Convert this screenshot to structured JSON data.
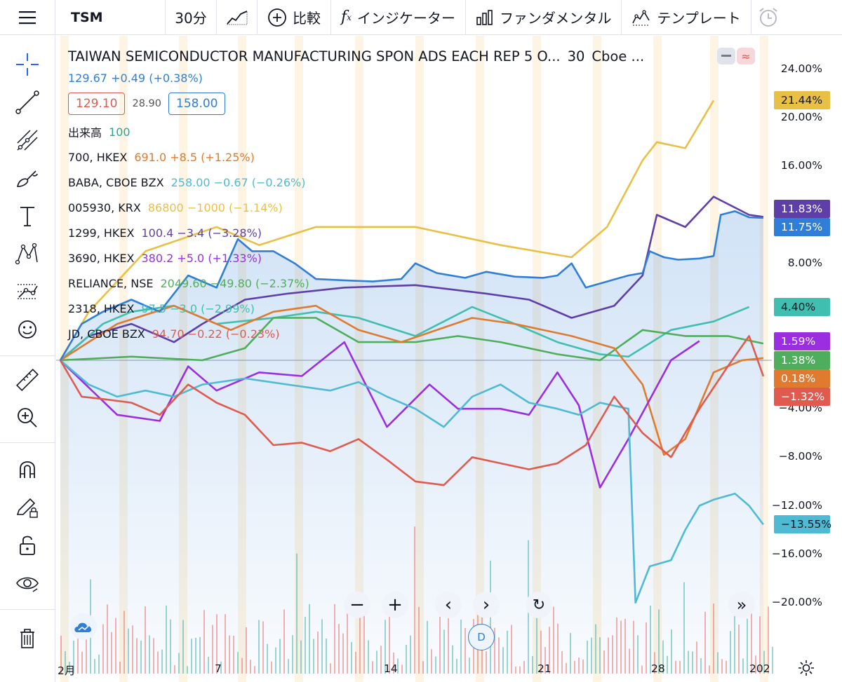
{
  "toolbar": {
    "symbol": "TSM",
    "interval": "30分",
    "compare_label": "比較",
    "indicators_label": "インジケーター",
    "fundamentals_label": "ファンダメンタル",
    "templates_label": "テンプレート"
  },
  "legend": {
    "title": "TAIWAN SEMICONDUCTOR MANUFACTURING SPON ADS EACH REP 5 O...",
    "interval": "30",
    "exchange": "Cboe ...",
    "price": "129.67",
    "change": "+0.49",
    "change_pct": "(+0.38%)",
    "bid": "129.10",
    "spread": "28.90",
    "ask": "158.00",
    "volume_label": "出来高",
    "volume_value": "100",
    "rows": [
      {
        "name": "700, HKEX",
        "value": "691.0 +8.5 (+1.25%)",
        "color": "#e07a2e"
      },
      {
        "name": "BABA, CBOE BZX",
        "value": "258.00 −0.67 (−0.26%)",
        "color": "#4ebad3"
      },
      {
        "name": "005930, KRX",
        "value": "86800 −1000 (−1.14%)",
        "color": "#e9c046"
      },
      {
        "name": "1299, HKEX",
        "value": "100.4 −3.4 (−3.28%)",
        "color": "#5e3fa8"
      },
      {
        "name": "3690, HKEX",
        "value": "380.2 +5.0 (+1.33%)",
        "color": "#9b2ee0"
      },
      {
        "name": "RELIANCE, NSE",
        "value": "2049.60 −49.80 (−2.37%)",
        "color": "#4fae5c"
      },
      {
        "name": "2318, HKEX",
        "value": "97.5 −3.0 (−2.99%)",
        "color": "#3fbfb0"
      },
      {
        "name": "JD, CBOE BZX",
        "value": "94.70 −0.22 (−0.23%)",
        "color": "#e05a50"
      }
    ]
  },
  "chart_data": {
    "type": "line",
    "title": "TAIWAN SEMICONDUCTOR MANUFACTURING SPON ADS EACH REP 5 O...",
    "yaxis_ticks": [
      "24.00%",
      "20.00%",
      "16.00%",
      "8.00%",
      "4.00%",
      "−4.00%",
      "−8.00%",
      "−12.00%",
      "−16.00%",
      "−20.00%"
    ],
    "ylim": [
      -22,
      25
    ],
    "xaxis_ticks": [
      "2月",
      "7",
      "14",
      "21",
      "28",
      "202"
    ],
    "series": [
      {
        "name": "TSM",
        "color": "#2f7ed8",
        "last": "11.75%",
        "points": [
          [
            0,
            0
          ],
          [
            0.03,
            3
          ],
          [
            0.06,
            4
          ],
          [
            0.1,
            5
          ],
          [
            0.14,
            4
          ],
          [
            0.18,
            7
          ],
          [
            0.22,
            6
          ],
          [
            0.25,
            10
          ],
          [
            0.27,
            9
          ],
          [
            0.3,
            9
          ],
          [
            0.33,
            8
          ],
          [
            0.36,
            6.7
          ],
          [
            0.4,
            6.6
          ],
          [
            0.44,
            6.5
          ],
          [
            0.48,
            6.7
          ],
          [
            0.5,
            8
          ],
          [
            0.53,
            7.2
          ],
          [
            0.57,
            6.8
          ],
          [
            0.6,
            7.3
          ],
          [
            0.64,
            6.9
          ],
          [
            0.68,
            6.8
          ],
          [
            0.7,
            7
          ],
          [
            0.72,
            8
          ],
          [
            0.74,
            6
          ],
          [
            0.77,
            6.5
          ],
          [
            0.8,
            7
          ],
          [
            0.82,
            7.2
          ],
          [
            0.83,
            9
          ],
          [
            0.85,
            8.5
          ],
          [
            0.87,
            8.3
          ],
          [
            0.9,
            8.4
          ],
          [
            0.92,
            8.6
          ],
          [
            0.93,
            12
          ],
          [
            0.95,
            12.3
          ],
          [
            0.97,
            11.8
          ],
          [
            0.99,
            11.75
          ]
        ]
      },
      {
        "name": "005930, KRX",
        "color": "#e9c046",
        "last": "21.44%",
        "points": [
          [
            0,
            0
          ],
          [
            0.04,
            4
          ],
          [
            0.12,
            9
          ],
          [
            0.22,
            11
          ],
          [
            0.28,
            9.5
          ],
          [
            0.36,
            11
          ],
          [
            0.5,
            11
          ],
          [
            0.62,
            9.5
          ],
          [
            0.72,
            8.5
          ],
          [
            0.77,
            11
          ],
          [
            0.82,
            16.5
          ],
          [
            0.84,
            18
          ],
          [
            0.88,
            17.5
          ],
          [
            0.92,
            21.44
          ]
        ]
      },
      {
        "name": "1299, HKEX",
        "color": "#5e3fa8",
        "last": "11.83%",
        "points": [
          [
            0,
            0
          ],
          [
            0.04,
            2
          ],
          [
            0.1,
            3
          ],
          [
            0.16,
            1.5
          ],
          [
            0.2,
            3
          ],
          [
            0.26,
            5
          ],
          [
            0.32,
            5.5
          ],
          [
            0.4,
            6
          ],
          [
            0.5,
            6.2
          ],
          [
            0.6,
            5.5
          ],
          [
            0.66,
            5
          ],
          [
            0.72,
            3.5
          ],
          [
            0.78,
            4.5
          ],
          [
            0.82,
            7
          ],
          [
            0.84,
            12
          ],
          [
            0.88,
            11
          ],
          [
            0.92,
            13.5
          ],
          [
            0.97,
            12
          ],
          [
            0.99,
            11.83
          ]
        ]
      },
      {
        "name": "2318, HKEX",
        "color": "#3fbfb0",
        "last": "4.40%",
        "points": [
          [
            0,
            0
          ],
          [
            0.06,
            3
          ],
          [
            0.1,
            4
          ],
          [
            0.16,
            4.5
          ],
          [
            0.22,
            3
          ],
          [
            0.3,
            3.5
          ],
          [
            0.36,
            4
          ],
          [
            0.42,
            3.5
          ],
          [
            0.5,
            2
          ],
          [
            0.58,
            4.4
          ],
          [
            0.64,
            3
          ],
          [
            0.7,
            1.5
          ],
          [
            0.76,
            0.5
          ],
          [
            0.8,
            0.3
          ],
          [
            0.86,
            2.5
          ],
          [
            0.92,
            3.2
          ],
          [
            0.97,
            4.4
          ]
        ]
      },
      {
        "name": "RELIANCE, NSE",
        "color": "#4fae5c",
        "last": "1.38%",
        "points": [
          [
            0,
            0
          ],
          [
            0.1,
            0.3
          ],
          [
            0.2,
            0
          ],
          [
            0.26,
            1
          ],
          [
            0.3,
            3.5
          ],
          [
            0.36,
            3.5
          ],
          [
            0.42,
            1.5
          ],
          [
            0.5,
            1.5
          ],
          [
            0.56,
            2
          ],
          [
            0.62,
            1.5
          ],
          [
            0.7,
            0.5
          ],
          [
            0.76,
            0
          ],
          [
            0.82,
            2.5
          ],
          [
            0.88,
            2
          ],
          [
            0.94,
            2
          ],
          [
            0.99,
            1.38
          ]
        ]
      },
      {
        "name": "700, HKEX",
        "color": "#e07a2e",
        "last": "0.18%",
        "points": [
          [
            0,
            0
          ],
          [
            0.08,
            3
          ],
          [
            0.16,
            4.5
          ],
          [
            0.24,
            2.5
          ],
          [
            0.3,
            4
          ],
          [
            0.36,
            4.5
          ],
          [
            0.42,
            2.5
          ],
          [
            0.48,
            1.5
          ],
          [
            0.58,
            3.5
          ],
          [
            0.64,
            3
          ],
          [
            0.72,
            2
          ],
          [
            0.78,
            1
          ],
          [
            0.82,
            -2
          ],
          [
            0.85,
            -7.8
          ],
          [
            0.88,
            -6.5
          ],
          [
            0.92,
            -1
          ],
          [
            0.96,
            0
          ],
          [
            0.99,
            0.18
          ]
        ]
      },
      {
        "name": "3690, HKEX",
        "color": "#9b2ee0",
        "last": "1.59%",
        "points": [
          [
            0,
            0
          ],
          [
            0.08,
            -4.5
          ],
          [
            0.14,
            -5
          ],
          [
            0.18,
            -0.5
          ],
          [
            0.22,
            -2.5
          ],
          [
            0.28,
            -1
          ],
          [
            0.34,
            -1.3
          ],
          [
            0.4,
            1.5
          ],
          [
            0.46,
            -5.5
          ],
          [
            0.52,
            -2
          ],
          [
            0.56,
            -4
          ],
          [
            0.62,
            -4
          ],
          [
            0.66,
            -4.5
          ],
          [
            0.7,
            -1
          ],
          [
            0.73,
            -3.7
          ],
          [
            0.76,
            -10.5
          ],
          [
            0.8,
            -6.5
          ],
          [
            0.86,
            0
          ],
          [
            0.9,
            1.59
          ]
        ]
      },
      {
        "name": "BABA, CBOE BZX",
        "color": "#4ebad3",
        "last": "-13.55%",
        "points": [
          [
            0,
            0
          ],
          [
            0.04,
            -2
          ],
          [
            0.08,
            -3
          ],
          [
            0.12,
            -2.5
          ],
          [
            0.16,
            -3
          ],
          [
            0.2,
            -2
          ],
          [
            0.26,
            -1.5
          ],
          [
            0.32,
            -2
          ],
          [
            0.38,
            -2.5
          ],
          [
            0.42,
            -1.8
          ],
          [
            0.46,
            -3
          ],
          [
            0.5,
            -4
          ],
          [
            0.54,
            -5.5
          ],
          [
            0.58,
            -3
          ],
          [
            0.62,
            -2
          ],
          [
            0.66,
            -3.5
          ],
          [
            0.7,
            -4
          ],
          [
            0.73,
            -4.5
          ],
          [
            0.76,
            -3.5
          ],
          [
            0.8,
            -4
          ],
          [
            0.81,
            -20
          ],
          [
            0.83,
            -17
          ],
          [
            0.86,
            -16.5
          ],
          [
            0.88,
            -14
          ],
          [
            0.9,
            -12
          ],
          [
            0.92,
            -11.5
          ],
          [
            0.95,
            -11
          ],
          [
            0.97,
            -12
          ],
          [
            0.99,
            -13.55
          ]
        ]
      },
      {
        "name": "JD, CBOE BZX",
        "color": "#e05a50",
        "last": "-1.32%",
        "points": [
          [
            0,
            0
          ],
          [
            0.03,
            -3
          ],
          [
            0.06,
            -3.2
          ],
          [
            0.1,
            -3.5
          ],
          [
            0.14,
            -4.5
          ],
          [
            0.18,
            -2
          ],
          [
            0.22,
            -3.5
          ],
          [
            0.26,
            -4.5
          ],
          [
            0.3,
            -7
          ],
          [
            0.34,
            -6.8
          ],
          [
            0.38,
            -7.5
          ],
          [
            0.42,
            -6.5
          ],
          [
            0.46,
            -8.2
          ],
          [
            0.5,
            -10
          ],
          [
            0.54,
            -10.3
          ],
          [
            0.58,
            -8
          ],
          [
            0.62,
            -8.5
          ],
          [
            0.66,
            -9
          ],
          [
            0.7,
            -8.5
          ],
          [
            0.74,
            -7
          ],
          [
            0.78,
            -3
          ],
          [
            0.82,
            -6
          ],
          [
            0.86,
            -8
          ],
          [
            0.9,
            -4
          ],
          [
            0.94,
            -0.5
          ],
          [
            0.97,
            2
          ],
          [
            0.99,
            -1.32
          ]
        ]
      }
    ],
    "compare_series_count": 9
  },
  "tags": {
    "yellow": "21.44%",
    "purple_dark": "11.83%",
    "blue": "11.75%",
    "teal": "4.40%",
    "violet": "1.59%",
    "green": "1.38%",
    "orange": "0.18%",
    "red": "−1.32%",
    "cyan": "−13.55%"
  },
  "bottom": {
    "zoom_out": "−",
    "zoom_in": "+",
    "scroll_left": "‹",
    "scroll_right": "›",
    "reset": "↻",
    "go_live": "»",
    "d_label": "D"
  }
}
